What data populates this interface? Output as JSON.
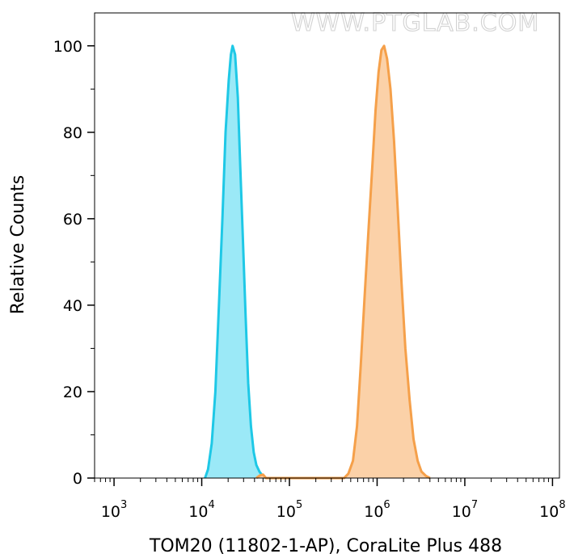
{
  "watermark": "WWW.PTGLAB.COM",
  "chart_data": {
    "type": "area",
    "xlabel": "TOM20 (11802-1-AP), CoraLite Plus 488",
    "ylabel": "Relative Counts",
    "xscale": "log",
    "xlim": [
      600,
      120000000
    ],
    "ylim": [
      0,
      105
    ],
    "grid": false,
    "x_ticks": [
      {
        "base": "10",
        "exp": "3",
        "value": 1000
      },
      {
        "base": "10",
        "exp": "4",
        "value": 10000
      },
      {
        "base": "10",
        "exp": "5",
        "value": 100000
      },
      {
        "base": "10",
        "exp": "6",
        "value": 1000000
      },
      {
        "base": "10",
        "exp": "7",
        "value": 10000000
      },
      {
        "base": "10",
        "exp": "8",
        "value": 100000000
      }
    ],
    "y_ticks": [
      0,
      20,
      40,
      60,
      80,
      100
    ],
    "series": [
      {
        "color": "#1ec8e6",
        "fill": "#9be9f7",
        "points": [
          [
            10900,
            0
          ],
          [
            11800,
            2
          ],
          [
            13000,
            8
          ],
          [
            14300,
            20
          ],
          [
            15700,
            40
          ],
          [
            17200,
            60
          ],
          [
            18700,
            80
          ],
          [
            20300,
            92
          ],
          [
            21500,
            98
          ],
          [
            22500,
            100
          ],
          [
            24000,
            98
          ],
          [
            25800,
            88
          ],
          [
            27500,
            72
          ],
          [
            29500,
            55
          ],
          [
            31600,
            38
          ],
          [
            33900,
            22
          ],
          [
            36400,
            12
          ],
          [
            39100,
            6
          ],
          [
            42000,
            3
          ],
          [
            45500,
            1.5
          ],
          [
            49500,
            0.5
          ],
          [
            53000,
            0
          ]
        ]
      },
      {
        "color": "#f5a04a",
        "fill": "#fbd1a8",
        "points": [
          [
            42000,
            0
          ],
          [
            46000,
            0.6
          ],
          [
            50000,
            0.8
          ],
          [
            54000,
            0
          ],
          [
            420000,
            0
          ],
          [
            470000,
            1
          ],
          [
            530000,
            4
          ],
          [
            590000,
            12
          ],
          [
            650000,
            26
          ],
          [
            720000,
            42
          ],
          [
            800000,
            58
          ],
          [
            880000,
            72
          ],
          [
            960000,
            85
          ],
          [
            1040000,
            94
          ],
          [
            1120000,
            99
          ],
          [
            1200000,
            100
          ],
          [
            1300000,
            97
          ],
          [
            1420000,
            90
          ],
          [
            1560000,
            78
          ],
          [
            1720000,
            62
          ],
          [
            1900000,
            45
          ],
          [
            2100000,
            30
          ],
          [
            2350000,
            18
          ],
          [
            2600000,
            9
          ],
          [
            2900000,
            4
          ],
          [
            3200000,
            1.5
          ],
          [
            3600000,
            0.5
          ],
          [
            4000000,
            0
          ]
        ]
      }
    ]
  }
}
